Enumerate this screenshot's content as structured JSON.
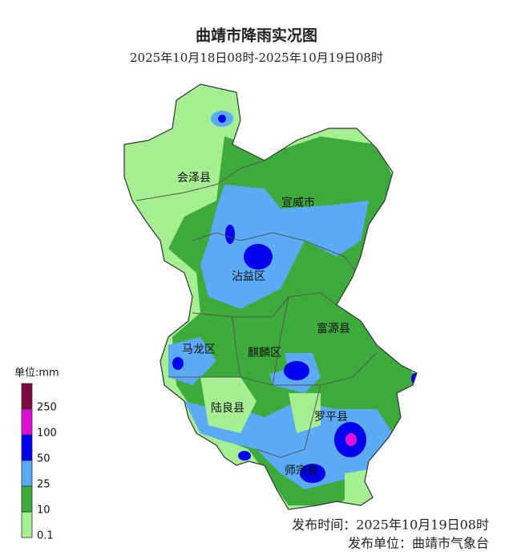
{
  "header": {
    "title": "曲靖市降雨实况图",
    "subtitle": "2025年10月18日08时-2025年10月19日08时"
  },
  "counties": [
    {
      "label": "会泽县"
    },
    {
      "label": "宣威市"
    },
    {
      "label": "沾益区"
    },
    {
      "label": "富源县"
    },
    {
      "label": "马龙区"
    },
    {
      "label": "麒麟区"
    },
    {
      "label": "陆良县"
    },
    {
      "label": "罗平县"
    },
    {
      "label": "师宗县"
    }
  ],
  "legend": {
    "unit": "单位:mm",
    "colors": [
      "#7a0a40",
      "#e010d8",
      "#0000ee",
      "#5aaaf5",
      "#3cab3c",
      "#a6ee92"
    ],
    "labels": [
      "250",
      "100",
      "50",
      "25",
      "10",
      "0.1"
    ]
  },
  "footer": {
    "time": "发布时间：2025年10月19日08时",
    "unit": "发布单位：曲靖市气象台"
  }
}
